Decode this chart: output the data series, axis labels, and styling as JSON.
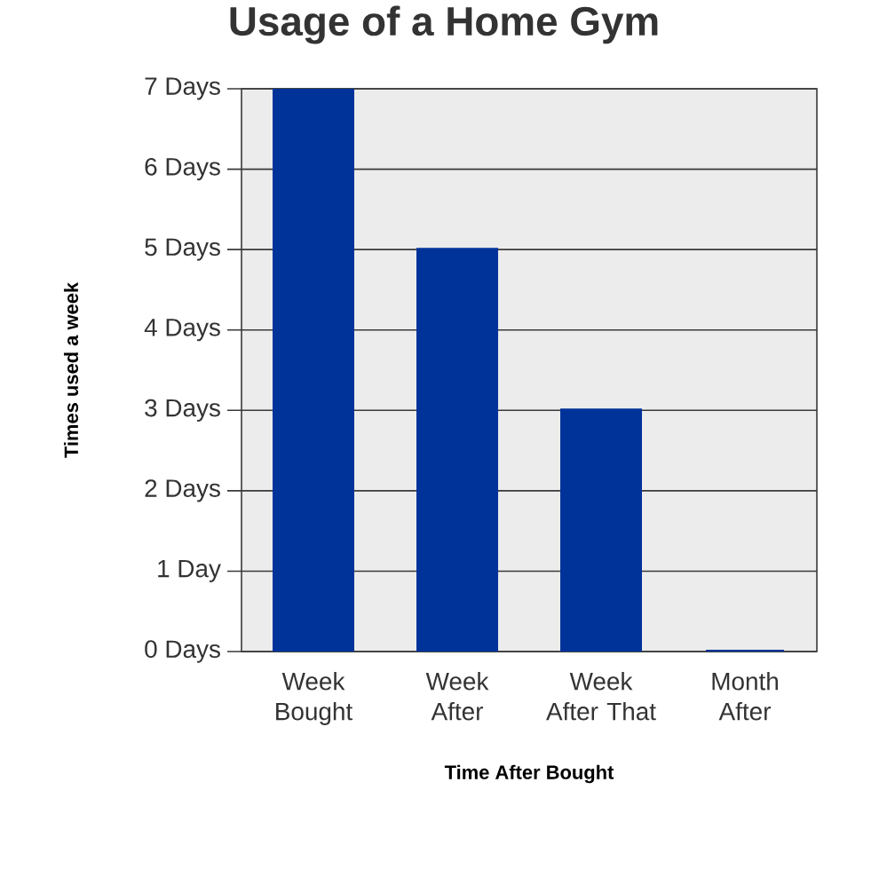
{
  "chart_data": {
    "type": "bar",
    "title": "Usage of a Home Gym",
    "xlabel": "Time After Bought",
    "ylabel": "Times used a week",
    "categories": [
      "Week Bought",
      "Week After",
      "Week After That",
      "Month After"
    ],
    "values": [
      7,
      5,
      3,
      0
    ],
    "color": "#003399",
    "ylim": [
      0,
      7
    ],
    "yticks": [
      {
        "value": 0,
        "label": "0 Days"
      },
      {
        "value": 1,
        "label": "1 Day"
      },
      {
        "value": 2,
        "label": "2 Days"
      },
      {
        "value": 3,
        "label": "3 Days"
      },
      {
        "value": 4,
        "label": "4 Days"
      },
      {
        "value": 5,
        "label": "5 Days"
      },
      {
        "value": 6,
        "label": "6 Days"
      },
      {
        "value": 7,
        "label": "7 Days"
      }
    ],
    "grid": "y"
  }
}
